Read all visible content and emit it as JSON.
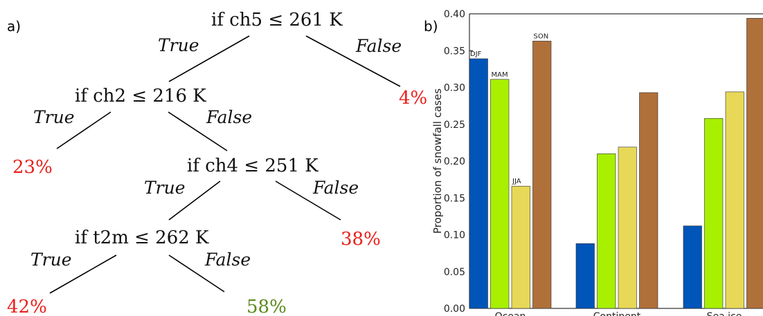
{
  "panel_a": {
    "label": "a)",
    "root": "if ch5 ≤ 261 K",
    "node2": "if ch2 ≤ 216 K",
    "node3": "if ch4 ≤ 251 K",
    "node4": "if t2m ≤ 262 K",
    "true_label": "True",
    "false_label": "False",
    "leaf_root_false": "4%",
    "leaf_node2_true": "23%",
    "leaf_node3_false": "38%",
    "leaf_node4_true": "42%",
    "leaf_node4_false": "58%",
    "colors": {
      "red": "#e8201c",
      "green": "#5a8a1e"
    }
  },
  "panel_b": {
    "label": "b)"
  },
  "chart_data": {
    "type": "bar",
    "categories": [
      "Ocean",
      "Continent",
      "Sea ice"
    ],
    "series": [
      {
        "name": "DJF",
        "color": "#0055b8",
        "values": [
          0.339,
          0.088,
          0.112
        ]
      },
      {
        "name": "MAM",
        "color": "#a8f000",
        "values": [
          0.311,
          0.21,
          0.258
        ]
      },
      {
        "name": "JJA",
        "color": "#e8d858",
        "values": [
          0.166,
          0.219,
          0.294
        ]
      },
      {
        "name": "SON",
        "color": "#b0703a",
        "values": [
          0.363,
          0.293,
          0.394
        ]
      }
    ],
    "title": "",
    "xlabel": "",
    "ylabel": "Proportion of snowfall cases",
    "ylim": [
      0,
      0.4
    ],
    "yticks": [
      "0.00",
      "0.05",
      "0.10",
      "0.15",
      "0.20",
      "0.25",
      "0.30",
      "0.35",
      "0.40"
    ],
    "series_labels_on": "Ocean",
    "grid": false
  }
}
